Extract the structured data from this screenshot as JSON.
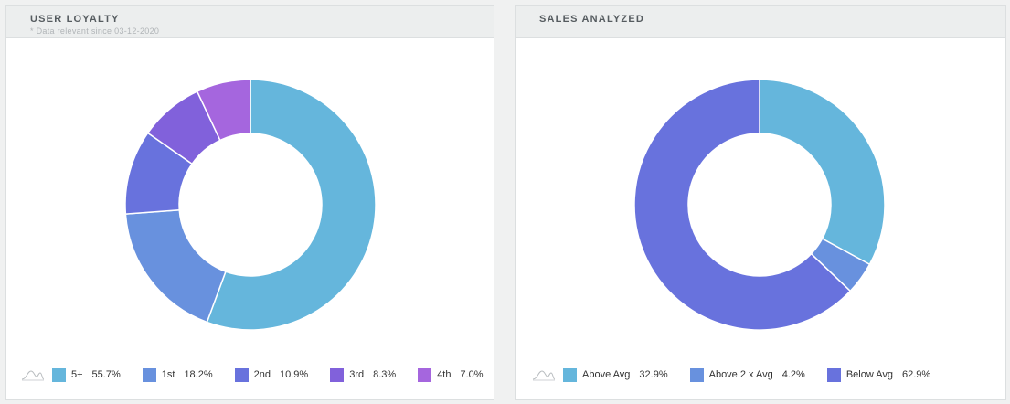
{
  "panels": {
    "loyalty": {
      "title": "USER LOYALTY",
      "subtitle": "* Data relevant since 03-12-2020",
      "legend_icon": "sparkline-icon"
    },
    "sales": {
      "title": "SALES ANALYZED",
      "legend_icon": "sparkline-icon"
    }
  },
  "chart_data": [
    {
      "type": "pie",
      "title": "USER LOYALTY",
      "slices": [
        {
          "label": "5+",
          "value_label": "55.7%",
          "value": 55.7,
          "color": "#65b6dc"
        },
        {
          "label": "1st",
          "value_label": "18.2%",
          "value": 18.2,
          "color": "#6891de"
        },
        {
          "label": "2nd",
          "value_label": "10.9%",
          "value": 10.9,
          "color": "#6872dd"
        },
        {
          "label": "3rd",
          "value_label": "8.3%",
          "value": 8.3,
          "color": "#8161db"
        },
        {
          "label": "4th",
          "value_label": "7.0%",
          "value": 7.0,
          "color": "#a566de"
        }
      ]
    },
    {
      "type": "pie",
      "title": "SALES ANALYZED",
      "slices": [
        {
          "label": "Above Avg",
          "value_label": "32.9%",
          "value": 32.9,
          "color": "#65b6dc"
        },
        {
          "label": "Above 2 x Avg",
          "value_label": "4.2%",
          "value": 4.2,
          "color": "#6891de"
        },
        {
          "label": "Below Avg",
          "value_label": "62.9%",
          "value": 62.9,
          "color": "#6872dd"
        }
      ]
    }
  ]
}
